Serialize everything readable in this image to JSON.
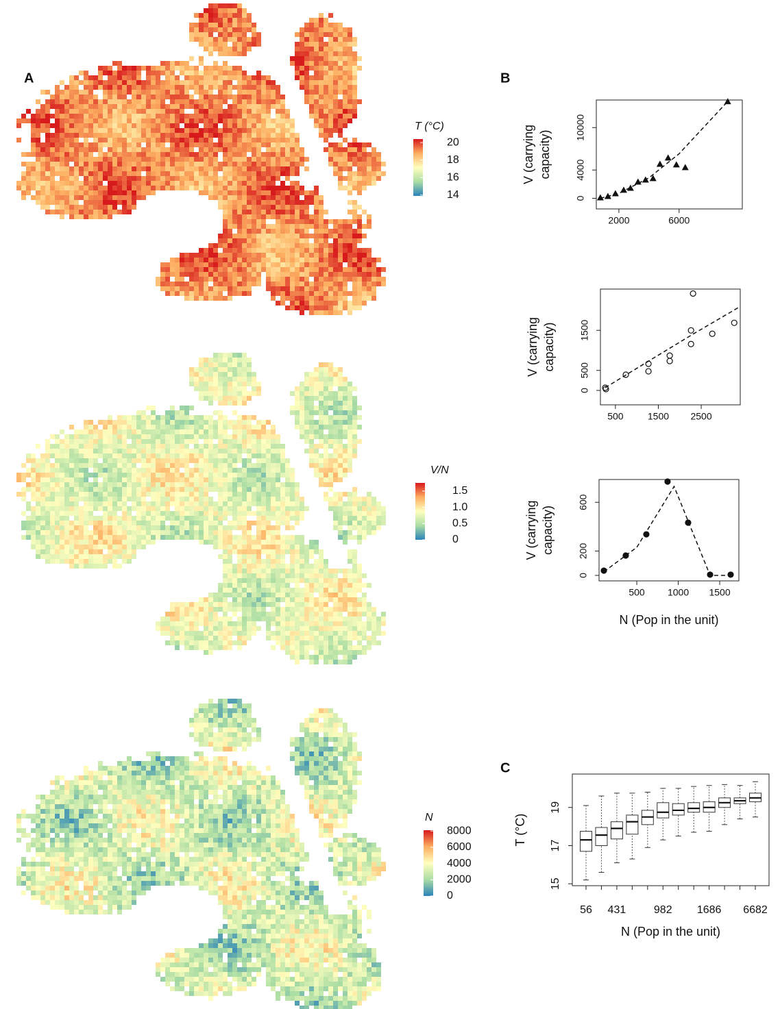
{
  "chart_data": [
    {
      "type": "map",
      "panel_label": "A",
      "title": "T (°C)",
      "clim": [
        13.9,
        20.4
      ],
      "cticks": [
        14,
        16,
        18,
        20
      ],
      "colormap": [
        "#2b83ba",
        "#abdda4",
        "#ffffbf",
        "#fdae61",
        "#d7191c"
      ]
    },
    {
      "type": "map",
      "title": "V/N",
      "clim": [
        0,
        1.75
      ],
      "cticks": [
        0,
        0.5,
        {
          "value": 1,
          "label": "1.0"
        },
        1.5
      ],
      "colormap": [
        "#2b83ba",
        "#abdda4",
        "#ffffbf",
        "#fdae61",
        "#d7191c"
      ]
    },
    {
      "type": "map",
      "title": "N",
      "clim": [
        0,
        8100
      ],
      "cticks": [
        0,
        2000,
        4000,
        6000,
        8000
      ],
      "colormap": [
        "#2b83ba",
        "#abdda4",
        "#ffffbf",
        "#fdae61",
        "#d7191c"
      ]
    },
    {
      "type": "scatter",
      "panel_label": "B",
      "ylabel": [
        "V (carrying",
        "capacity)"
      ],
      "xlim": [
        500,
        10200
      ],
      "ylim": [
        -1500,
        13900
      ],
      "xticks": [
        2000,
        6000
      ],
      "yticks": [
        0,
        4000,
        10000
      ],
      "marker": "triangle",
      "x": [
        770,
        1270,
        1770,
        2320,
        2770,
        3270,
        3770,
        4270,
        4730,
        5270,
        5820,
        6410,
        9230
      ],
      "values": [
        100,
        290,
        680,
        1170,
        1460,
        2330,
        2620,
        2820,
        4850,
        5730,
        4760,
        4370,
        13690
      ],
      "fit_x": [
        770,
        2000,
        4000,
        6000,
        9230
      ],
      "fit_values": [
        0,
        700,
        2900,
        6300,
        13700
      ]
    },
    {
      "type": "scatter",
      "ylabel": [
        "V (carrying",
        "capacity)"
      ],
      "xlim": [
        150,
        3410
      ],
      "ylim": [
        -360,
        2530
      ],
      "xticks": [
        500,
        1500,
        2500
      ],
      "yticks": [
        0,
        500,
        1500
      ],
      "marker": "open-circle",
      "x": [
        262,
        278,
        742,
        1270,
        1270,
        1766,
        1766,
        2262,
        2262,
        2310,
        2758,
        3270
      ],
      "values": [
        68,
        34,
        392,
        664,
        477,
        869,
        733,
        1499,
        1158,
        2419,
        1414,
        1687
      ],
      "fit_x": [
        262,
        1300,
        2300,
        3410
      ],
      "fit_values": [
        68,
        750,
        1400,
        2095
      ]
    },
    {
      "type": "scatter",
      "ylabel": [
        "V (carrying",
        "capacity)"
      ],
      "xlabel": "N (Pop in the unit)",
      "xlim": [
        45,
        1731
      ],
      "ylim": [
        -45,
        787
      ],
      "xticks": [
        500,
        1000,
        1500
      ],
      "yticks": [
        0,
        200,
        600
      ],
      "marker": "filled-circle",
      "x": [
        103,
        367,
        615,
        871,
        1119,
        1384,
        1632
      ],
      "values": [
        39,
        163,
        337,
        770,
        433,
        6,
        6
      ],
      "fit_x": [
        103,
        500,
        950,
        1384,
        1632
      ],
      "fit_values": [
        30,
        230,
        730,
        0,
        0
      ]
    },
    {
      "type": "box",
      "panel_label": "C",
      "ylabel": "T (°C)",
      "xlabel": "N (Pop in the unit)",
      "categories": [
        "56",
        null,
        "431",
        null,
        null,
        "982",
        null,
        null,
        "1686",
        null,
        null,
        "6682"
      ],
      "min": [
        15.2,
        15.6,
        16.1,
        16.3,
        16.9,
        17.3,
        17.5,
        17.7,
        17.75,
        18.1,
        18.4,
        18.5
      ],
      "q1": [
        16.7,
        17.0,
        17.35,
        17.6,
        18.1,
        18.45,
        18.6,
        18.75,
        18.75,
        19.0,
        19.2,
        19.3
      ],
      "median": [
        17.3,
        17.55,
        17.9,
        18.25,
        18.5,
        18.75,
        18.85,
        18.95,
        19.0,
        19.25,
        19.35,
        19.5
      ],
      "q3": [
        17.75,
        17.95,
        18.25,
        18.6,
        18.85,
        19.25,
        19.2,
        19.25,
        19.3,
        19.5,
        19.5,
        19.75
      ],
      "max": [
        19.1,
        19.6,
        19.75,
        19.75,
        19.8,
        20.0,
        20.0,
        20.1,
        20.15,
        20.2,
        20.15,
        20.35
      ],
      "ylim": [
        14.9,
        20.75
      ],
      "yticks": [
        15,
        17,
        19
      ]
    }
  ]
}
